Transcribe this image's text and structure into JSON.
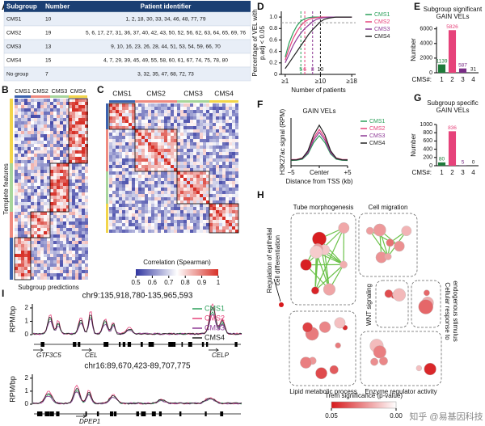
{
  "panel_labels": [
    "A",
    "B",
    "C",
    "D",
    "E",
    "F",
    "G",
    "H",
    "I"
  ],
  "table": {
    "header": [
      "Subgroup",
      "Number",
      "Patient identifier"
    ],
    "rows": [
      [
        "CMS1",
        10,
        "1, 2, 18, 30, 33, 34, 46, 48, 77, 79"
      ],
      [
        "CMS2",
        19,
        "5, 6, 17, 27, 31, 36, 37, 40, 42, 43, 50, 52, 56, 62, 63, 64, 65, 69, 76"
      ],
      [
        "CMS3",
        13,
        "9, 10, 16, 23, 26, 28, 44, 51, 53, 54, 59, 66, 70"
      ],
      [
        "CMS4",
        15,
        "4, 7, 29, 39, 45, 49, 55, 58, 60, 61, 67, 74, 75, 78, 80"
      ],
      [
        "No group",
        7,
        "3, 32, 35, 47, 68, 72, 73"
      ]
    ]
  },
  "heatmap_b": {
    "groups": [
      "CMS1",
      "CMS2",
      "CMS3",
      "CMS4"
    ],
    "group_colors": [
      "#3c62ad",
      "#ef8a7f",
      "#a8d59b",
      "#f2d54b"
    ],
    "y_label": "Templete features",
    "x_label": "Subgroup predictions"
  },
  "heatmap_c": {
    "groups": [
      "CMS1",
      "CMS2",
      "CMS3",
      "CMS4"
    ],
    "colorbar_title": "Correlation (Spearman)",
    "colorbar_ticks": [
      0.5,
      0.6,
      0.7,
      0.8,
      0.9,
      1
    ],
    "colorbar_range": [
      0.5,
      1
    ]
  },
  "chart_data": [
    {
      "type": "line",
      "y_label": [
        "Percentage of VEL with",
        "p.adj < 0.05"
      ],
      "x_label": "Number of patients",
      "x": [
        1,
        2,
        3,
        4,
        5,
        6,
        7,
        8,
        9,
        10,
        11,
        12,
        13,
        14,
        15,
        16,
        17,
        18
      ],
      "series": [
        {
          "name": "CMS1",
          "color": "#2ca05a",
          "values": [
            0.3,
            0.55,
            0.72,
            0.85,
            0.93,
            0.97,
            0.99,
            1,
            1,
            1,
            1,
            1,
            1,
            1,
            1,
            1,
            1,
            1
          ]
        },
        {
          "name": "CMS2",
          "color": "#e6427a",
          "values": [
            0.25,
            0.45,
            0.62,
            0.75,
            0.85,
            0.92,
            0.96,
            0.98,
            0.99,
            1,
            1,
            1,
            1,
            1,
            1,
            1,
            1,
            1
          ]
        },
        {
          "name": "CMS3",
          "color": "#8e3a96",
          "values": [
            0.2,
            0.35,
            0.5,
            0.62,
            0.72,
            0.8,
            0.86,
            0.92,
            0.96,
            0.98,
            0.99,
            1,
            1,
            1,
            1,
            1,
            1,
            1
          ]
        },
        {
          "name": "CMS4",
          "color": "#222222",
          "values": [
            0.1,
            0.2,
            0.3,
            0.4,
            0.5,
            0.6,
            0.7,
            0.78,
            0.85,
            0.92,
            0.96,
            0.98,
            0.99,
            1,
            1,
            1,
            1,
            1
          ]
        }
      ],
      "xlim": [
        0,
        19
      ],
      "ylim": [
        0,
        1.1
      ],
      "xticks": [
        {
          "value": 1,
          "label": "≥1"
        },
        {
          "value": 10,
          "label": "≥10"
        },
        {
          "value": 18,
          "label": "≥18"
        }
      ],
      "yticks": [
        0,
        0.2,
        0.4,
        0.6,
        0.8,
        {
          "value": 1,
          "label": "1.0"
        }
      ],
      "hline": 0.9,
      "vlines": [
        5,
        6,
        8,
        10
      ]
    },
    {
      "type": "bar",
      "title": [
        "Subgroup significant",
        "GAIN VELs"
      ],
      "y_label": "Number",
      "x_label": "CMS#:",
      "categories": [
        "1",
        "2",
        "3",
        "4"
      ],
      "values": [
        1139,
        5826,
        587,
        31
      ],
      "colors": [
        "#1f7a3a",
        "#e6427a",
        "#7a2d86",
        "#222222"
      ],
      "ylim": [
        0,
        6300
      ],
      "yticks": [
        0,
        2000,
        4000,
        6000
      ]
    },
    {
      "type": "line",
      "title": "GAIN VELs",
      "y_label": "H3K27ac signal (RPM)",
      "x_label": "Distance from TSS (kb)",
      "x": [
        -5,
        -4,
        -3,
        -2,
        -1,
        0,
        1,
        2,
        3,
        4,
        5
      ],
      "series": [
        {
          "name": "CMS1",
          "color": "#2ca05a",
          "values": [
            0.11,
            0.113,
            0.136,
            0.247,
            0.483,
            0.63,
            0.483,
            0.247,
            0.136,
            0.113,
            0.11
          ]
        },
        {
          "name": "CMS2",
          "color": "#e6427a",
          "values": [
            0.13,
            0.133,
            0.162,
            0.296,
            0.582,
            0.76,
            0.582,
            0.296,
            0.162,
            0.133,
            0.13
          ]
        },
        {
          "name": "CMS3",
          "color": "#8e3a96",
          "values": [
            0.12,
            0.123,
            0.149,
            0.273,
            0.536,
            0.7,
            0.536,
            0.273,
            0.149,
            0.123,
            0.12
          ]
        },
        {
          "name": "CMS4",
          "color": "#222222",
          "values": [
            0.12,
            0.124,
            0.156,
            0.313,
            0.643,
            0.85,
            0.643,
            0.313,
            0.156,
            0.124,
            0.12
          ]
        }
      ],
      "xlim": [
        -5,
        5
      ],
      "ylim": [
        0,
        1
      ],
      "xticks": [
        {
          "value": -5,
          "label": "−5"
        },
        {
          "value": 0,
          "label": "Center"
        },
        {
          "value": 5,
          "label": "+5"
        }
      ]
    },
    {
      "type": "bar",
      "title": [
        "Subgroup specific",
        "GAIN VELs"
      ],
      "y_label": "Number",
      "x_label": "CMS#:",
      "categories": [
        "1",
        "2",
        "3",
        "4"
      ],
      "values": [
        80,
        836,
        5,
        0
      ],
      "colors": [
        "#1f7a3a",
        "#e6427a",
        "#7a2d86",
        "#222222"
      ],
      "ylim": [
        0,
        1000
      ],
      "yticks": [
        0,
        200,
        400,
        600,
        800,
        1000
      ]
    }
  ],
  "network": {
    "cluster_labels": [
      "Tube morphogenesis",
      "Cell migration",
      [
        "Regulation of epithelial",
        "cell differentiation"
      ],
      "WNT signaling",
      [
        "Cellular response to",
        "endogenous stimulus"
      ],
      "Lipid metabolic process",
      "Enzyme regulator activity"
    ],
    "colorbar_title": "Trem significance (p-value)",
    "colorbar_ticks": [
      0.05,
      {
        "value": 0,
        "label": "0.00"
      }
    ]
  },
  "tracks": [
    {
      "title": "chr9:135,918,780-135,965,593",
      "y_label": "RPM/bp",
      "ylim": [
        0,
        2.3
      ],
      "yticks": [
        0,
        1,
        2
      ],
      "genes": [
        "GTF3C5",
        "CEL",
        "CELP"
      ],
      "series": [
        {
          "name": "CMS1",
          "color": "#2ca05a"
        },
        {
          "name": "CMS2",
          "color": "#e6427a"
        },
        {
          "name": "CMS3",
          "color": "#8e3a96"
        },
        {
          "name": "CMS4",
          "color": "#222222"
        }
      ]
    },
    {
      "title": "chr16:89,670,423-89,707,775",
      "y_label": "RPM/bp",
      "ylim": [
        0,
        2.3
      ],
      "yticks": [
        0,
        1,
        2
      ],
      "genes": [
        "DPEP1"
      ]
    }
  ],
  "watermark": "知乎 @易基因科技"
}
